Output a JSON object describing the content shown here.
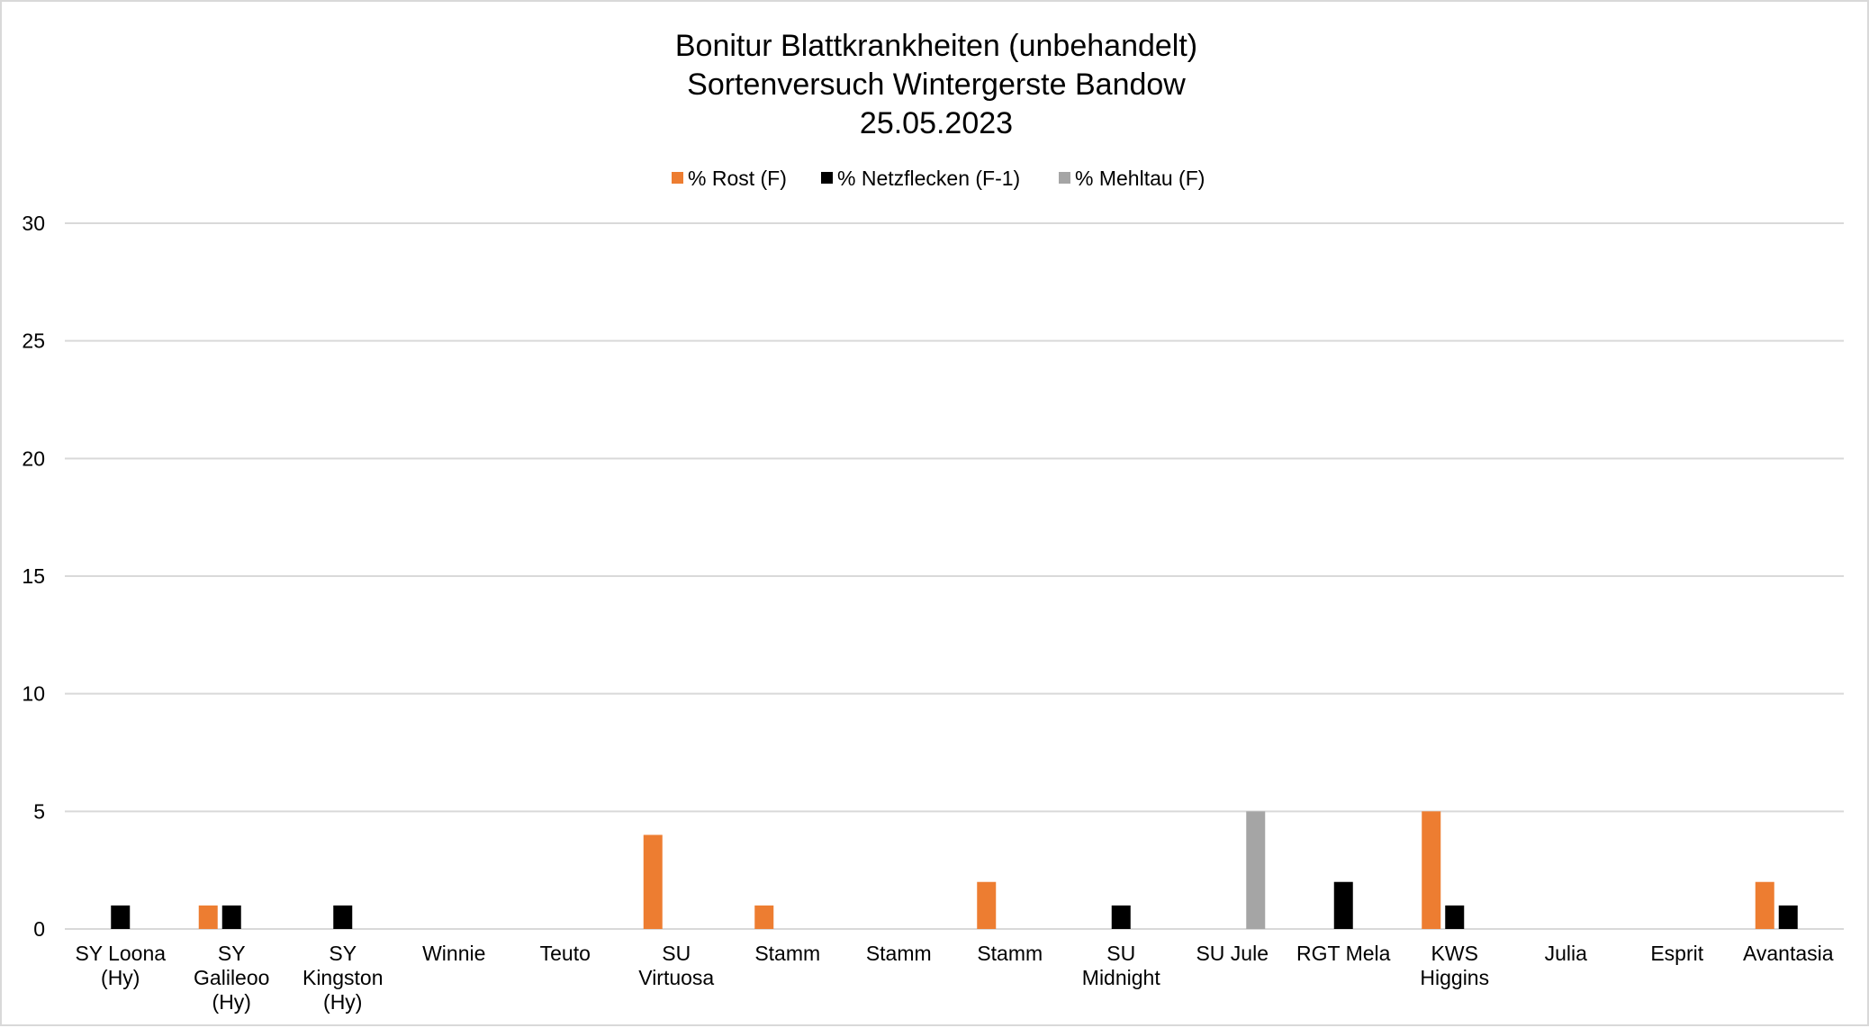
{
  "chart_data": {
    "type": "bar",
    "title": [
      "Bonitur Blattkrankheiten (unbehandelt)",
      "Sortenversuch Wintergerste Bandow",
      "25.05.2023"
    ],
    "xlabel": "",
    "ylabel": "",
    "ylim": [
      0,
      30
    ],
    "yticks": [
      0,
      5,
      10,
      15,
      20,
      25,
      30
    ],
    "grid": true,
    "legend_position": "top",
    "categories": [
      [
        "SY Loona",
        "(Hy)"
      ],
      [
        "SY",
        "Galileoo",
        "(Hy)"
      ],
      [
        "SY",
        "Kingston",
        "(Hy)"
      ],
      [
        "Winnie"
      ],
      [
        "Teuto"
      ],
      [
        "SU",
        "Virtuosa"
      ],
      [
        "Stamm"
      ],
      [
        "Stamm"
      ],
      [
        "Stamm"
      ],
      [
        "SU",
        "Midnight"
      ],
      [
        "SU Jule"
      ],
      [
        "RGT Mela"
      ],
      [
        "KWS",
        "Higgins"
      ],
      [
        "Julia"
      ],
      [
        "Esprit"
      ],
      [
        "Avantasia"
      ]
    ],
    "series": [
      {
        "name": "% Rost (F)",
        "color": "#ED7D31",
        "values": [
          0,
          1,
          0,
          0,
          0,
          4,
          1,
          0,
          2,
          0,
          0,
          0,
          5,
          0,
          0,
          2
        ]
      },
      {
        "name": "% Netzflecken (F-1)",
        "color": "#000000",
        "values": [
          1,
          1,
          1,
          0,
          0,
          0,
          0,
          0,
          0,
          1,
          0,
          2,
          1,
          0,
          0,
          1
        ]
      },
      {
        "name": "% Mehltau (F)",
        "color": "#A5A5A5",
        "values": [
          0,
          0,
          0,
          0,
          0,
          0,
          0,
          0,
          0,
          0,
          5,
          0,
          0,
          0,
          0,
          0
        ]
      }
    ]
  }
}
